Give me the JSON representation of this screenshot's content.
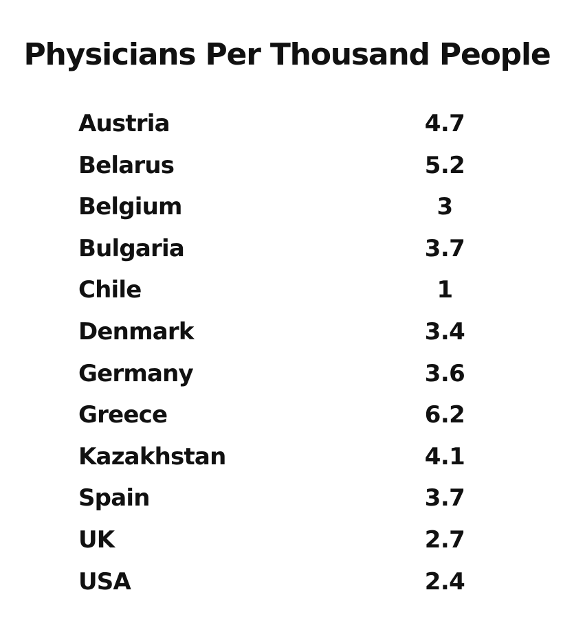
{
  "title": "Physicians Per Thousand People",
  "rows": [
    {
      "country": "Austria",
      "value": "4.7"
    },
    {
      "country": "Belarus",
      "value": "5.2"
    },
    {
      "country": "Belgium",
      "value": "3"
    },
    {
      "country": "Bulgaria",
      "value": "3.7"
    },
    {
      "country": "Chile",
      "value": "1"
    },
    {
      "country": "Denmark",
      "value": "3.4"
    },
    {
      "country": "Germany",
      "value": "3.6"
    },
    {
      "country": "Greece",
      "value": "6.2"
    },
    {
      "country": "Kazakhstan",
      "value": "4.1"
    },
    {
      "country": "Spain",
      "value": "3.7"
    },
    {
      "country": "UK",
      "value": "2.7"
    },
    {
      "country": "USA",
      "value": "2.4"
    }
  ]
}
